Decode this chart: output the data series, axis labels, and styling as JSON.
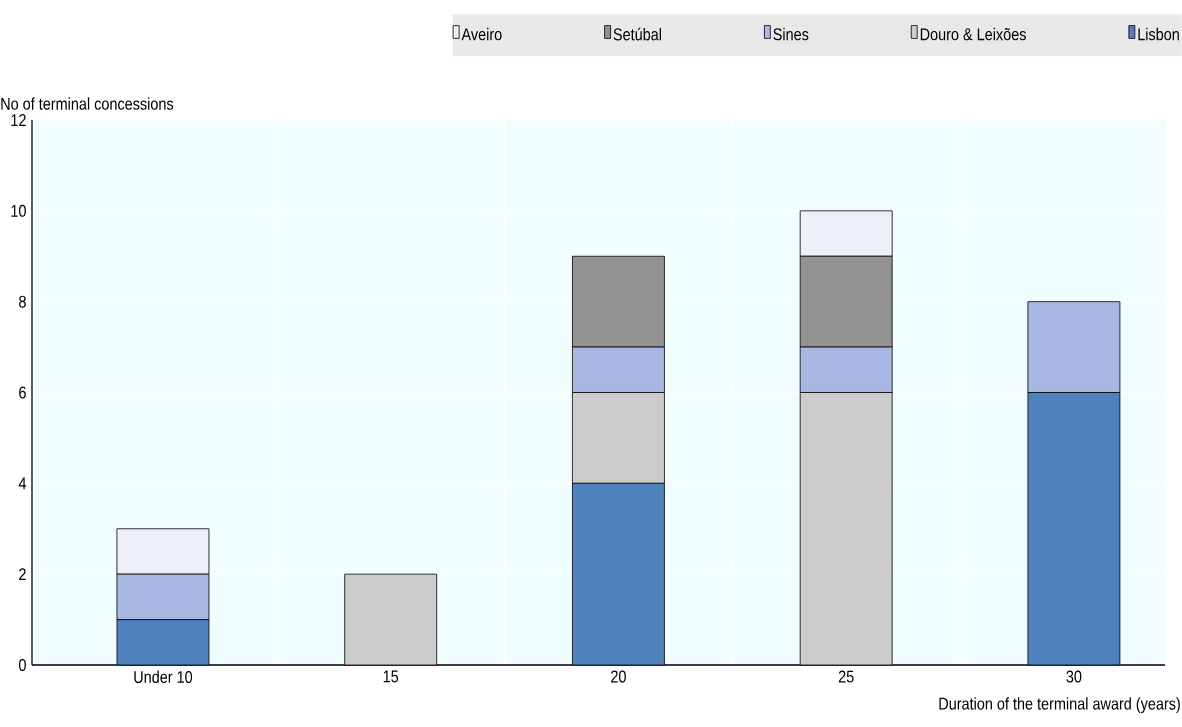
{
  "chart_data": {
    "type": "bar",
    "stacked": true,
    "ylabel": "No of terminal concessions",
    "xlabel": "Duration of the terminal award (years)",
    "categories": [
      "Under 10",
      "15",
      "20",
      "25",
      "30"
    ],
    "series": [
      {
        "name": "Lisbon",
        "color": "#4f81bd",
        "values": [
          1,
          0,
          4,
          0,
          6
        ]
      },
      {
        "name": "Douro & Leixões",
        "color": "#cccccc",
        "values": [
          0,
          2,
          2,
          6,
          0
        ]
      },
      {
        "name": "Sines",
        "color": "#a8b8e2",
        "values": [
          1,
          0,
          1,
          1,
          2
        ]
      },
      {
        "name": "Setúbal",
        "color": "#929292",
        "values": [
          0,
          0,
          2,
          2,
          0
        ]
      },
      {
        "name": "Aveiro",
        "color": "#edf0f8",
        "values": [
          1,
          0,
          0,
          1,
          0
        ]
      }
    ],
    "ylim": [
      0,
      12
    ],
    "yticks": [
      0,
      2,
      4,
      6,
      8,
      10,
      12
    ],
    "grid": true,
    "legend": "top"
  }
}
